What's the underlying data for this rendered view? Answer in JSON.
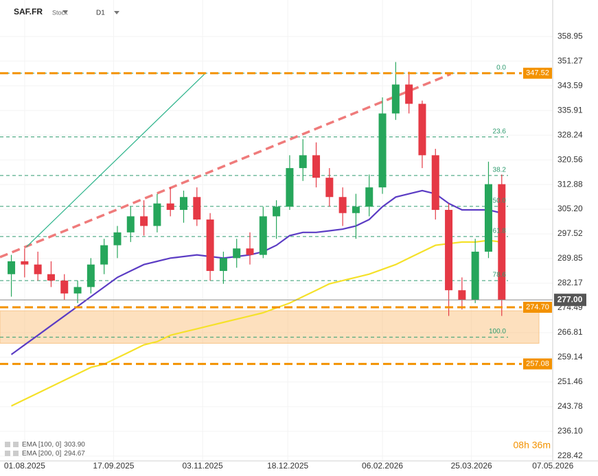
{
  "chart_data": {
    "type": "candlestick",
    "symbol": "SAF.FR",
    "asset_class": "Stock",
    "timeframe": "D1",
    "countdown": "08h 36m",
    "up_color": "#26a65b",
    "down_color": "#e53945",
    "grid": true,
    "xlim": [
      "19.07.2025",
      "08.05.2026"
    ],
    "xticks": [
      "01.08.2025",
      "17.09.2025",
      "03.11.2025",
      "18.12.2025",
      "06.02.2026",
      "25.03.2026",
      "07.05.2026"
    ],
    "ylim": [
      226.9,
      370.3
    ],
    "yticks": [
      358.95,
      351.27,
      343.59,
      335.91,
      328.24,
      320.56,
      312.88,
      {
        "value": 305.2,
        "label": "305.20"
      },
      297.52,
      289.85,
      282.17,
      274.49,
      266.81,
      259.14,
      251.46,
      243.78,
      {
        "value": 236.1,
        "label": "236.10"
      },
      228.42
    ],
    "x": [
      "25.07.2025",
      "01.08.2025",
      "08.08.2025",
      "15.08.2025",
      "22.08.2025",
      "29.08.2025",
      "05.09.2025",
      "12.09.2025",
      "19.09.2025",
      "26.09.2025",
      "03.10.2025",
      "10.10.2025",
      "17.10.2025",
      "24.10.2025",
      "31.10.2025",
      "07.11.2025",
      "14.11.2025",
      "21.11.2025",
      "28.11.2025",
      "05.12.2025",
      "12.12.2025",
      "19.12.2025",
      "26.12.2025",
      "02.01.2026",
      "09.01.2026",
      "16.01.2026",
      "23.01.2026",
      "30.01.2026",
      "06.02.2026",
      "13.02.2026",
      "20.02.2026",
      "27.02.2026",
      "06.03.2026",
      "13.03.2026",
      "20.03.2026",
      "27.03.2026",
      "03.04.2026",
      "10.04.2026"
    ],
    "open": [
      285,
      289,
      288,
      285,
      283,
      279,
      281,
      288,
      294,
      298,
      303,
      300,
      307,
      305,
      309,
      302,
      286,
      290,
      293,
      291,
      303,
      306,
      318,
      322,
      315,
      309,
      304,
      306,
      312,
      335,
      344,
      338,
      322,
      305,
      280,
      277,
      292,
      313
    ],
    "high": [
      291,
      293,
      292,
      289,
      285,
      283,
      290,
      296,
      300,
      306,
      308,
      310,
      312,
      311,
      312,
      304,
      292,
      296,
      298,
      306,
      308,
      322,
      327,
      326,
      318,
      312,
      310,
      316,
      340,
      351,
      348,
      339,
      324,
      307,
      284,
      296,
      320,
      316
    ],
    "low": [
      278,
      284,
      283,
      281,
      277,
      276,
      279,
      285,
      290,
      295,
      297,
      298,
      303,
      301,
      300,
      283,
      282,
      287,
      288,
      290,
      296,
      305,
      314,
      312,
      306,
      300,
      296,
      303,
      310,
      333,
      335,
      318,
      302,
      272,
      274,
      276,
      290,
      272
    ],
    "close": [
      289,
      288,
      285,
      283,
      279,
      281,
      288,
      294,
      298,
      303,
      300,
      307,
      305,
      309,
      302,
      286,
      290,
      293,
      291,
      303,
      306,
      318,
      322,
      315,
      309,
      304,
      306,
      312,
      335,
      344,
      338,
      322,
      305,
      280,
      277,
      292,
      313,
      277
    ],
    "series": [
      {
        "name": "EMA [100, 0]",
        "legend_value": "303.90",
        "color": "#5b3cc4",
        "values": [
          260,
          263,
          266,
          269,
          272,
          275,
          278,
          281,
          284,
          286,
          288,
          289,
          290,
          290.5,
          291,
          290.5,
          290,
          290.5,
          291,
          292,
          294,
          297,
          298,
          298,
          298.5,
          299,
          300,
          302,
          306,
          309,
          310,
          311,
          310,
          307,
          305,
          305,
          305,
          304
        ]
      },
      {
        "name": "EMA [200, 0]",
        "legend_value": "294.67",
        "color": "#f5e12a",
        "values": [
          244,
          246,
          248,
          250,
          252,
          254,
          256,
          257,
          259,
          261,
          263,
          264,
          266,
          267,
          268,
          269,
          270,
          271,
          272,
          273,
          274.5,
          276,
          278,
          280,
          282,
          283,
          284,
          285,
          286.5,
          288,
          290,
          292,
          294,
          294.5,
          295,
          295,
          295.5,
          295
        ]
      }
    ],
    "levels": [
      {
        "value": 347.52
      },
      {
        "value": 274.7,
        "label": "274.70"
      },
      {
        "value": 257.08
      }
    ],
    "level_color": "#f39200",
    "zone": [
      263.5,
      273.6
    ],
    "last_price": {
      "value": 277,
      "label": "277.00"
    },
    "fib_levels": [
      {
        "value": 347.52,
        "label": "0.0"
      },
      {
        "value": 327.7,
        "label": "23.6"
      },
      {
        "value": 315.7,
        "label": "38.2"
      },
      {
        "value": 306.1,
        "label": "50.0"
      },
      {
        "value": 296.7,
        "label": "61.8"
      },
      {
        "value": 283,
        "label": "78.6"
      },
      {
        "value": 265.4,
        "label": "100.0"
      }
    ],
    "trendlines": [
      {
        "color": "#ef7b7b",
        "x": [
          "19.07.2025",
          "14.03.2026"
        ],
        "y": [
          290.3,
          347.25
        ]
      },
      {
        "color": "#2bb38a",
        "x": [
          "02.08.2025",
          "04.11.2025"
        ],
        "y": [
          293.5,
          347.25
        ]
      }
    ]
  }
}
